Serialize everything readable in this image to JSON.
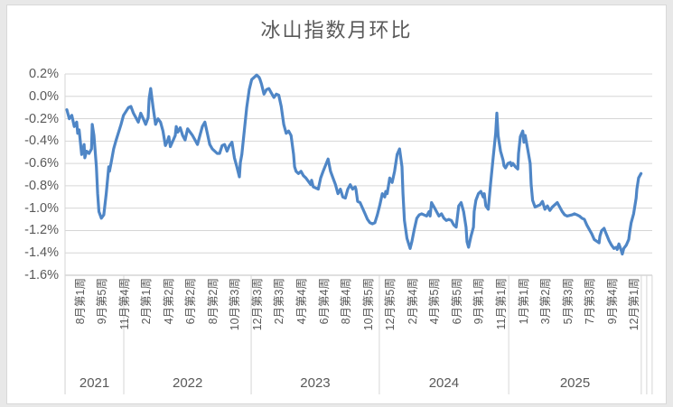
{
  "chart_data": {
    "type": "line",
    "title": "冰山指数月环比",
    "legend": "none",
    "grid": "horizontal",
    "y_axis": {
      "tick_labels": [
        "0.2%",
        "0.0%",
        "-0.2%",
        "-0.4%",
        "-0.6%",
        "-0.8%",
        "-1.0%",
        "-1.2%",
        "-1.4%",
        "-1.6%"
      ],
      "max_pct": 0.2,
      "min_pct": -1.6,
      "step_pct": 0.2
    },
    "x_axis": {
      "unit": "week",
      "weeks_per_tick": 9,
      "tick_labels": [
        "8月第1周",
        "9月第5周",
        "11月第4周",
        "2月第1周",
        "4月第2周",
        "6月第2周",
        "8月第2周",
        "10月第3周",
        "12月第3周",
        "2月第3周",
        "4月第4周",
        "6月第4周",
        "8月第4周",
        "10月第5周",
        "12月第5周",
        "2月第4周",
        "4月第5周",
        "6月第5周",
        "9月第1周",
        "11月第1周",
        "1月第1周",
        "3月第2周",
        "5月第3周",
        "7月第3周",
        "9月第4周",
        "12月第1周"
      ],
      "year_row": {
        "labels": [
          "2021",
          "2022",
          "2023",
          "2024",
          "2025"
        ],
        "label_center_weeks": [
          11.2,
          49,
          100.8,
          153,
          206.2
        ],
        "boundary_weeks": [
          -0.7,
          23.1,
          74.8,
          126.8,
          179.3,
          233.1
        ],
        "extra_boundary_weeks": [
          235.3,
          237.5
        ]
      }
    },
    "series": [
      {
        "name": "冰山指数月环比",
        "color": "#4f86c6",
        "points": [
          [
            0,
            -0.12
          ],
          [
            1,
            -0.2
          ],
          [
            2,
            -0.17
          ],
          [
            3,
            -0.27
          ],
          [
            4,
            -0.23
          ],
          [
            4.4,
            -0.33
          ],
          [
            5,
            -0.3
          ],
          [
            6,
            -0.52
          ],
          [
            7,
            -0.43
          ],
          [
            7.3,
            -0.55
          ],
          [
            8,
            -0.49
          ],
          [
            9,
            -0.51
          ],
          [
            10,
            -0.47
          ],
          [
            10.3,
            -0.25
          ],
          [
            11,
            -0.35
          ],
          [
            12,
            -0.63
          ],
          [
            12.5,
            -0.87
          ],
          [
            13,
            -1.03
          ],
          [
            14,
            -1.09
          ],
          [
            15,
            -1.06
          ],
          [
            16,
            -0.87
          ],
          [
            17,
            -0.63
          ],
          [
            17.3,
            -0.67
          ],
          [
            18,
            -0.59
          ],
          [
            19,
            -0.47
          ],
          [
            20,
            -0.39
          ],
          [
            22,
            -0.25
          ],
          [
            23,
            -0.17
          ],
          [
            25,
            -0.1
          ],
          [
            26,
            -0.09
          ],
          [
            27,
            -0.15
          ],
          [
            29,
            -0.23
          ],
          [
            30,
            -0.15
          ],
          [
            31,
            -0.2
          ],
          [
            32,
            -0.25
          ],
          [
            33,
            -0.19
          ],
          [
            33.4,
            -0.02
          ],
          [
            34,
            0.07
          ],
          [
            35,
            -0.1
          ],
          [
            36,
            -0.25
          ],
          [
            37,
            -0.2
          ],
          [
            38,
            -0.23
          ],
          [
            39,
            -0.31
          ],
          [
            40,
            -0.44
          ],
          [
            41,
            -0.39
          ],
          [
            41.4,
            -0.36
          ],
          [
            42,
            -0.45
          ],
          [
            44,
            -0.35
          ],
          [
            44.4,
            -0.27
          ],
          [
            45,
            -0.32
          ],
          [
            46,
            -0.28
          ],
          [
            47,
            -0.35
          ],
          [
            48,
            -0.39
          ],
          [
            49,
            -0.29
          ],
          [
            51,
            -0.35
          ],
          [
            52,
            -0.39
          ],
          [
            53,
            -0.43
          ],
          [
            54,
            -0.35
          ],
          [
            55,
            -0.27
          ],
          [
            56,
            -0.23
          ],
          [
            57,
            -0.33
          ],
          [
            58,
            -0.43
          ],
          [
            59,
            -0.47
          ],
          [
            61,
            -0.51
          ],
          [
            62,
            -0.51
          ],
          [
            63,
            -0.44
          ],
          [
            64,
            -0.43
          ],
          [
            65,
            -0.49
          ],
          [
            66,
            -0.44
          ],
          [
            67,
            -0.41
          ],
          [
            68,
            -0.55
          ],
          [
            69,
            -0.63
          ],
          [
            70,
            -0.72
          ],
          [
            70.4,
            -0.59
          ],
          [
            71,
            -0.52
          ],
          [
            72,
            -0.31
          ],
          [
            73,
            -0.1
          ],
          [
            74,
            0.06
          ],
          [
            75,
            0.15
          ],
          [
            77,
            0.19
          ],
          [
            78,
            0.17
          ],
          [
            78.4,
            0.15
          ],
          [
            79,
            0.11
          ],
          [
            80,
            0.02
          ],
          [
            81,
            0.06
          ],
          [
            82,
            0.07
          ],
          [
            83,
            0.03
          ],
          [
            84,
            -0.01
          ],
          [
            85,
            0.02
          ],
          [
            86,
            0.01
          ],
          [
            87,
            -0.09
          ],
          [
            88,
            -0.25
          ],
          [
            89,
            -0.33
          ],
          [
            90,
            -0.31
          ],
          [
            91,
            -0.35
          ],
          [
            92,
            -0.52
          ],
          [
            92.4,
            -0.63
          ],
          [
            93,
            -0.67
          ],
          [
            94,
            -0.69
          ],
          [
            95,
            -0.67
          ],
          [
            96,
            -0.71
          ],
          [
            97,
            -0.73
          ],
          [
            99,
            -0.79
          ],
          [
            99.3,
            -0.75
          ],
          [
            100,
            -0.81
          ],
          [
            102,
            -0.83
          ],
          [
            103,
            -0.73
          ],
          [
            104,
            -0.67
          ],
          [
            106,
            -0.56
          ],
          [
            107,
            -0.67
          ],
          [
            108,
            -0.73
          ],
          [
            109,
            -0.79
          ],
          [
            110,
            -0.87
          ],
          [
            111,
            -0.83
          ],
          [
            112,
            -0.9
          ],
          [
            113,
            -0.91
          ],
          [
            114,
            -0.83
          ],
          [
            115,
            -0.79
          ],
          [
            116,
            -0.83
          ],
          [
            117,
            -0.81
          ],
          [
            117.3,
            -0.83
          ],
          [
            118,
            -0.94
          ],
          [
            119,
            -0.95
          ],
          [
            121,
            -1.05
          ],
          [
            122,
            -1.1
          ],
          [
            123,
            -1.13
          ],
          [
            124,
            -1.14
          ],
          [
            125,
            -1.13
          ],
          [
            126,
            -1.06
          ],
          [
            127,
            -0.97
          ],
          [
            128,
            -0.87
          ],
          [
            129,
            -0.9
          ],
          [
            129.4,
            -0.85
          ],
          [
            130,
            -0.87
          ],
          [
            131,
            -0.73
          ],
          [
            132,
            -0.77
          ],
          [
            133,
            -0.67
          ],
          [
            134,
            -0.52
          ],
          [
            135,
            -0.47
          ],
          [
            136,
            -0.63
          ],
          [
            136.4,
            -0.87
          ],
          [
            137,
            -1.11
          ],
          [
            138,
            -1.27
          ],
          [
            139,
            -1.34
          ],
          [
            139.3,
            -1.36
          ],
          [
            140,
            -1.3
          ],
          [
            141,
            -1.19
          ],
          [
            141.5,
            -1.14
          ],
          [
            142,
            -1.09
          ],
          [
            143,
            -1.06
          ],
          [
            144,
            -1.05
          ],
          [
            146,
            -1.07
          ],
          [
            147,
            -1.03
          ],
          [
            147.4,
            -1.07
          ],
          [
            148,
            -0.95
          ],
          [
            149,
            -0.99
          ],
          [
            150,
            -1.03
          ],
          [
            151,
            -1.07
          ],
          [
            152,
            -1.05
          ],
          [
            153,
            -1.09
          ],
          [
            154,
            -1.11
          ],
          [
            155,
            -1.1
          ],
          [
            156,
            -1.11
          ],
          [
            157,
            -1.15
          ],
          [
            158,
            -1.17
          ],
          [
            159,
            -0.98
          ],
          [
            160,
            -0.95
          ],
          [
            161,
            -1.03
          ],
          [
            162,
            -1.17
          ],
          [
            162.4,
            -1.3
          ],
          [
            163,
            -1.35
          ],
          [
            164,
            -1.25
          ],
          [
            165,
            -1.17
          ],
          [
            165.3,
            -1.03
          ],
          [
            166,
            -0.93
          ],
          [
            167,
            -0.87
          ],
          [
            168,
            -0.85
          ],
          [
            169,
            -0.9
          ],
          [
            169.4,
            -0.87
          ],
          [
            170,
            -0.98
          ],
          [
            171,
            -1.01
          ],
          [
            172,
            -0.77
          ],
          [
            173,
            -0.55
          ],
          [
            174,
            -0.33
          ],
          [
            174.5,
            -0.15
          ],
          [
            175,
            -0.35
          ],
          [
            176,
            -0.49
          ],
          [
            177,
            -0.57
          ],
          [
            177.4,
            -0.62
          ],
          [
            178,
            -0.64
          ],
          [
            179,
            -0.6
          ],
          [
            180,
            -0.59
          ],
          [
            180.4,
            -0.62
          ],
          [
            181,
            -0.6
          ],
          [
            182,
            -0.63
          ],
          [
            183,
            -0.65
          ],
          [
            183.3,
            -0.51
          ],
          [
            184,
            -0.36
          ],
          [
            185,
            -0.31
          ],
          [
            185.5,
            -0.41
          ],
          [
            186,
            -0.35
          ],
          [
            187,
            -0.47
          ],
          [
            188,
            -0.6
          ],
          [
            188.4,
            -0.79
          ],
          [
            189,
            -0.93
          ],
          [
            190,
            -0.99
          ],
          [
            191,
            -0.98
          ],
          [
            192,
            -0.97
          ],
          [
            193,
            -0.94
          ],
          [
            194,
            -1.01
          ],
          [
            195,
            -0.98
          ],
          [
            196,
            -1.02
          ],
          [
            197,
            -0.99
          ],
          [
            198,
            -0.97
          ],
          [
            199,
            -0.95
          ],
          [
            200,
            -0.99
          ],
          [
            201,
            -1.03
          ],
          [
            202,
            -1.06
          ],
          [
            203,
            -1.07
          ],
          [
            205,
            -1.06
          ],
          [
            206,
            -1.05
          ],
          [
            207,
            -1.06
          ],
          [
            208,
            -1.07
          ],
          [
            209,
            -1.09
          ],
          [
            210,
            -1.1
          ],
          [
            211,
            -1.15
          ],
          [
            212,
            -1.19
          ],
          [
            213,
            -1.23
          ],
          [
            214,
            -1.28
          ],
          [
            216,
            -1.31
          ],
          [
            216.3,
            -1.25
          ],
          [
            217,
            -1.2
          ],
          [
            218,
            -1.18
          ],
          [
            218.5,
            -1.21
          ],
          [
            220,
            -1.29
          ],
          [
            221,
            -1.33
          ],
          [
            222,
            -1.36
          ],
          [
            223,
            -1.35
          ],
          [
            223.3,
            -1.37
          ],
          [
            224,
            -1.32
          ],
          [
            225,
            -1.38
          ],
          [
            225.4,
            -1.41
          ],
          [
            226,
            -1.36
          ],
          [
            227,
            -1.33
          ],
          [
            228,
            -1.28
          ],
          [
            228.4,
            -1.21
          ],
          [
            229,
            -1.13
          ],
          [
            230,
            -1.05
          ],
          [
            231,
            -0.91
          ],
          [
            231.3,
            -0.83
          ],
          [
            232,
            -0.73
          ],
          [
            233,
            -0.69
          ]
        ]
      }
    ],
    "style": {
      "line_color": "#4f86c6",
      "grid_color": "#d6d6d6",
      "axis_color": "#bfbfbf",
      "text_color": "#595959",
      "chart_border_color": "#d9d9d9",
      "page_background": "#e8e8e8",
      "chart_background": "#ffffff"
    }
  }
}
